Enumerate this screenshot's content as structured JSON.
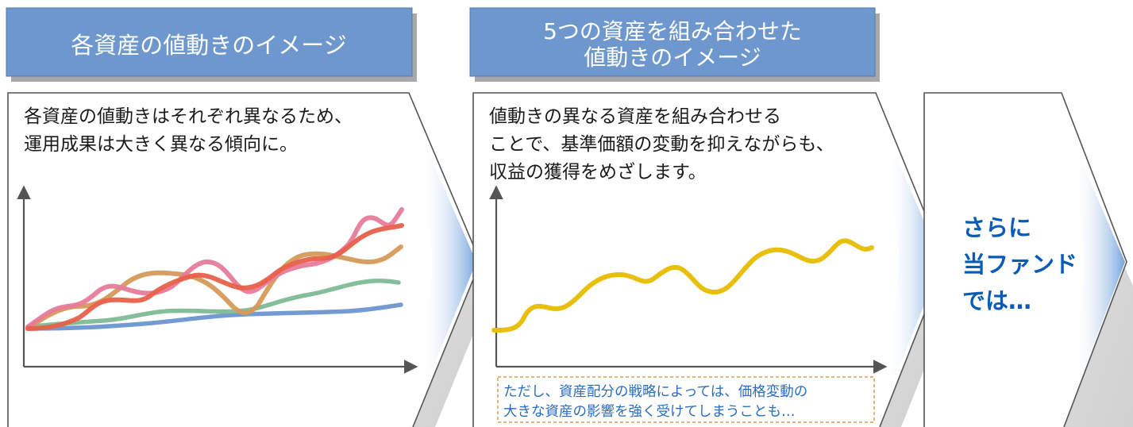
{
  "panel1": {
    "header": "各資産の値動きのイメージ",
    "desc_line1": "各資産の値動きはそれぞれ異なるため、",
    "desc_line2": "運用成果は大きく異なる傾向に。"
  },
  "panel2": {
    "header_line1": "5つの資産を組み合わせた",
    "header_line2": "値動きのイメージ",
    "desc_line1": "値動きの異なる資産を組み合わせる",
    "desc_line2": "ことで、基準価額の変動を抑えながらも、",
    "desc_line3": "収益の獲得をめざします。",
    "note_line1": "ただし、資産配分の戦略によっては、価格変動の",
    "note_line2": "大きな資産の影響を強く受けてしまうことも…"
  },
  "panel3": {
    "line1": "さらに",
    "line2": "当ファンド",
    "line3": "では…"
  },
  "colors": {
    "header_fill": "#6e98cd",
    "header_shadow": "#a8a8a8",
    "panel_stroke": "#555555",
    "title_blue": "#0a5bb5",
    "note_border": "#d99a4e",
    "note_text": "#2a6dc0",
    "series_pink": "#e77c9a",
    "series_orange": "#e8604a",
    "series_tan": "#d69a5a",
    "series_green": "#7dbb95",
    "series_blue": "#6b95d0",
    "combined_yellow": "#e8bf0c"
  }
}
